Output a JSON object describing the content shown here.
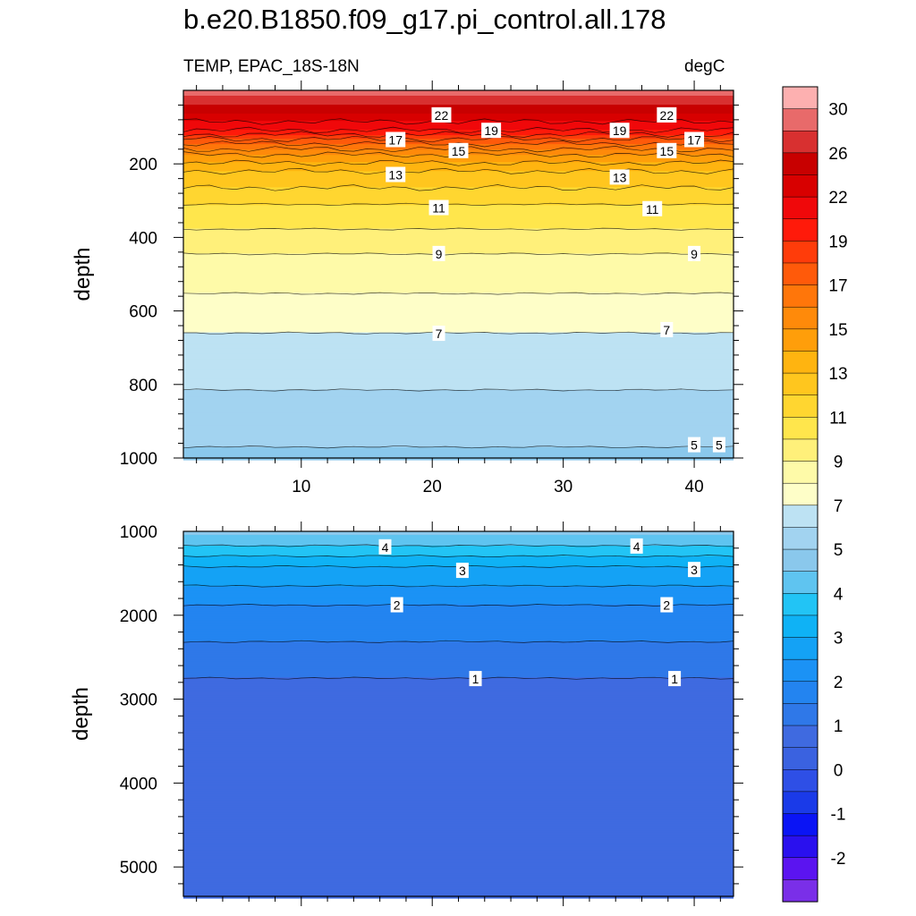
{
  "title": "b.e20.B1850.f09_g17.pi_control.all.178",
  "subtitle_left": "TEMP, EPAC_18S-18N",
  "subtitle_right": "degC",
  "chart_data": [
    {
      "type": "heatmap",
      "panel": "upper",
      "variable": "TEMP",
      "units": "degC",
      "xlabel": "",
      "ylabel": "depth",
      "xlim": [
        1,
        43
      ],
      "ylim": [
        1000,
        0
      ],
      "xticks": [
        "10",
        "20",
        "30",
        "40"
      ],
      "yticks": [
        "200",
        "400",
        "600",
        "800",
        "1000"
      ],
      "isotherm_depths": [
        {
          "value": 22,
          "depth": 85
        },
        {
          "value": 19,
          "depth": 120
        },
        {
          "value": 17,
          "depth": 145
        },
        {
          "value": 15,
          "depth": 175
        },
        {
          "value": 13,
          "depth": 220
        },
        {
          "value": 11,
          "depth": 310
        },
        {
          "value": 9,
          "depth": 445
        },
        {
          "value": 7,
          "depth": 660
        },
        {
          "value": 5,
          "depth": 970
        }
      ],
      "contour_labels": [
        {
          "text": "22",
          "x": 20.7,
          "depth": 68
        },
        {
          "text": "19",
          "x": 24.5,
          "depth": 110
        },
        {
          "text": "17",
          "x": 17.2,
          "depth": 135
        },
        {
          "text": "15",
          "x": 22,
          "depth": 165
        },
        {
          "text": "13",
          "x": 17.2,
          "depth": 230
        },
        {
          "text": "11",
          "x": 20.5,
          "depth": 320
        },
        {
          "text": "9",
          "x": 20.5,
          "depth": 445
        },
        {
          "text": "7",
          "x": 20.5,
          "depth": 662
        },
        {
          "text": "22",
          "x": 37.9,
          "depth": 68
        },
        {
          "text": "19",
          "x": 34.3,
          "depth": 110
        },
        {
          "text": "17",
          "x": 40,
          "depth": 135
        },
        {
          "text": "15",
          "x": 37.9,
          "depth": 165
        },
        {
          "text": "13",
          "x": 34.3,
          "depth": 237
        },
        {
          "text": "11",
          "x": 36.8,
          "depth": 323
        },
        {
          "text": "9",
          "x": 40,
          "depth": 445
        },
        {
          "text": "7",
          "x": 37.9,
          "depth": 652
        },
        {
          "text": "5",
          "x": 40,
          "depth": 965
        },
        {
          "text": "5",
          "x": 41.9,
          "depth": 965
        }
      ]
    },
    {
      "type": "heatmap",
      "panel": "lower",
      "variable": "TEMP",
      "units": "degC",
      "xlabel": "",
      "ylabel": "depth",
      "xlim": [
        1,
        43
      ],
      "ylim": [
        5350,
        1000
      ],
      "yticks": [
        "1000",
        "2000",
        "3000",
        "4000",
        "5000"
      ],
      "isotherm_depths": [
        {
          "value": 4,
          "depth": 1170
        },
        {
          "value": 3,
          "depth": 1420
        },
        {
          "value": 2,
          "depth": 1880
        },
        {
          "value": 1,
          "depth": 2750
        }
      ],
      "contour_labels": [
        {
          "text": "4",
          "x": 16.4,
          "depth": 1190
        },
        {
          "text": "3",
          "x": 22.3,
          "depth": 1470
        },
        {
          "text": "2",
          "x": 17.3,
          "depth": 1880
        },
        {
          "text": "1",
          "x": 23.3,
          "depth": 2760
        },
        {
          "text": "4",
          "x": 35.6,
          "depth": 1180
        },
        {
          "text": "3",
          "x": 40,
          "depth": 1460
        },
        {
          "text": "2",
          "x": 37.9,
          "depth": 1880
        },
        {
          "text": "1",
          "x": 38.5,
          "depth": 2760
        }
      ]
    }
  ],
  "colorbar": {
    "labels": [
      "30",
      "26",
      "22",
      "19",
      "17",
      "15",
      "13",
      "11",
      "9",
      "7",
      "5",
      "4",
      "3",
      "2",
      "1",
      "0",
      "-1",
      "-2"
    ],
    "levels": [
      -3,
      -2.5,
      -2,
      -1.5,
      -1,
      -0.5,
      0,
      0.5,
      1,
      1.5,
      2,
      2.5,
      3,
      3.5,
      4,
      4.5,
      5,
      6,
      7,
      8,
      9,
      10,
      11,
      12,
      13,
      14,
      15,
      16,
      17,
      18,
      19,
      20,
      22,
      24,
      26,
      28,
      30,
      32,
      34
    ],
    "colors": [
      "#7a2fe8",
      "#5b14f0",
      "#2a10ee",
      "#0a14f5",
      "#1a3ae8",
      "#2e4fe6",
      "#3a62e0",
      "#3f6ae0",
      "#2f78e8",
      "#2384f0",
      "#1b92f5",
      "#14a2f5",
      "#0fb2f5",
      "#22c4f5",
      "#5fc4f0",
      "#8ac8ec",
      "#a2d3f0",
      "#bde2f3",
      "#fefec8",
      "#fefaa8",
      "#fff07a",
      "#ffe64c",
      "#ffd630",
      "#ffc61e",
      "#ffb410",
      "#ff9e0a",
      "#ff8a0a",
      "#ff760a",
      "#ff5a0a",
      "#ff3c0a",
      "#ff1a0a",
      "#f0080a",
      "#d80000",
      "#c80000",
      "#d83030",
      "#e86a6a",
      "#fdb0b0"
    ]
  }
}
